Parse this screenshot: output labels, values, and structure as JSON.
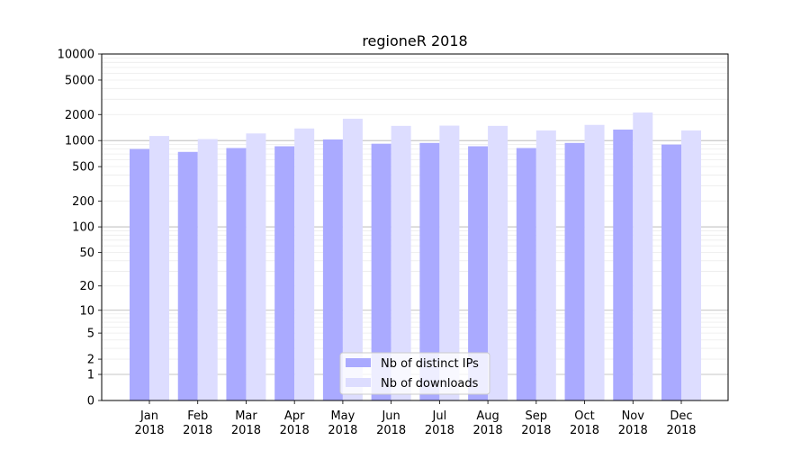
{
  "chart_data": {
    "type": "bar",
    "title": "regioneR 2018",
    "xlabel": "",
    "ylabel": "",
    "y_scale": "log1p",
    "ylim": [
      0,
      10000
    ],
    "y_ticks": [
      0,
      1,
      2,
      5,
      10,
      20,
      50,
      100,
      200,
      500,
      1000,
      2000,
      5000,
      10000
    ],
    "categories": [
      [
        "Jan",
        "2018"
      ],
      [
        "Feb",
        "2018"
      ],
      [
        "Mar",
        "2018"
      ],
      [
        "Apr",
        "2018"
      ],
      [
        "May",
        "2018"
      ],
      [
        "Jun",
        "2018"
      ],
      [
        "Jul",
        "2018"
      ],
      [
        "Aug",
        "2018"
      ],
      [
        "Sep",
        "2018"
      ],
      [
        "Oct",
        "2018"
      ],
      [
        "Nov",
        "2018"
      ],
      [
        "Dec",
        "2018"
      ]
    ],
    "series": [
      {
        "name": "Nb of distinct IPs",
        "color": "#aaaaff",
        "values": [
          800,
          740,
          820,
          860,
          1030,
          920,
          940,
          860,
          820,
          940,
          1340,
          900
        ]
      },
      {
        "name": "Nb of downloads",
        "color": "#ddddff",
        "values": [
          1130,
          1040,
          1210,
          1380,
          1790,
          1480,
          1490,
          1480,
          1310,
          1520,
          2110,
          1310
        ]
      }
    ],
    "grid": true,
    "legend_position": "bottom-center"
  }
}
